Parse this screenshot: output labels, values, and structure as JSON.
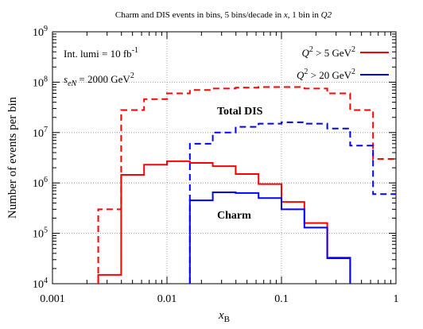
{
  "chart_data": {
    "type": "line",
    "title_parts": [
      "Charm and DIS events in bins, 5 bins/decade in ",
      "x",
      ", 1 bin in ",
      "Q2"
    ],
    "xlabel": {
      "main": "x",
      "sub": "B"
    },
    "ylabel": "Number of events per bin",
    "x_scale": "log",
    "y_scale": "log",
    "xlim": [
      0.001,
      1
    ],
    "ylim": [
      10000,
      1000000000
    ],
    "x_ticks": [
      {
        "value": 0.001,
        "label": "0.001"
      },
      {
        "value": 0.01,
        "label": "0.01"
      },
      {
        "value": 0.1,
        "label": "0.1"
      },
      {
        "value": 1,
        "label": "1"
      }
    ],
    "y_ticks": [
      {
        "value": 10000,
        "base": "10",
        "exp": "4"
      },
      {
        "value": 100000,
        "base": "10",
        "exp": "5"
      },
      {
        "value": 1000000,
        "base": "10",
        "exp": "6"
      },
      {
        "value": 10000000,
        "base": "10",
        "exp": "7"
      },
      {
        "value": 100000000,
        "base": "10",
        "exp": "8"
      },
      {
        "value": 1000000000,
        "base": "10",
        "exp": "9"
      }
    ],
    "grid": true,
    "bin_edges": [
      0.00251,
      0.00398,
      0.00631,
      0.01,
      0.01585,
      0.02512,
      0.03981,
      0.0631,
      0.1,
      0.1585,
      0.2512,
      0.3981,
      0.631,
      1.0
    ],
    "series": [
      {
        "name_parts": {
          "main": "Q",
          "sup1": "2",
          "mid": " > 5 GeV",
          "sup2": "2"
        },
        "group": "Q2>5",
        "color": "#ff0000",
        "dash": true,
        "label": "Total DIS",
        "values": [
          300000,
          28000000,
          46000000,
          60000000,
          70000000,
          75000000,
          78000000,
          80000000,
          80000000,
          75000000,
          60000000,
          28000000,
          3000000
        ]
      },
      {
        "group": "Q2>5",
        "color": "#ff0000",
        "dash": false,
        "label": "Charm",
        "values": [
          15000,
          1450000,
          2300000,
          2700000,
          2500000,
          2150000,
          1500000,
          950000,
          420000,
          160000,
          33000,
          null,
          null
        ]
      },
      {
        "name_parts": {
          "main": "Q",
          "sup1": "2",
          "mid": " > 20 GeV",
          "sup2": "2"
        },
        "group": "Q2>20",
        "color": "#0000ff",
        "dash": true,
        "label": "Total DIS",
        "values": [
          null,
          null,
          null,
          null,
          6000000,
          10000000,
          13000000,
          15000000,
          16000000,
          15000000,
          12000000,
          5500000,
          600000
        ]
      },
      {
        "group": "Q2>20",
        "color": "#0000ff",
        "dash": false,
        "label": "Charm",
        "values": [
          null,
          null,
          null,
          null,
          450000,
          650000,
          630000,
          500000,
          300000,
          130000,
          32000,
          null,
          null
        ]
      }
    ],
    "legend": {
      "placement": "top-right",
      "entries": [
        {
          "main": "Q",
          "sup1": "2",
          "mid": " > 5 GeV",
          "sup2": "2",
          "color": "#ff0000"
        },
        {
          "main": "Q",
          "sup1": "2",
          "mid": " > 20 GeV",
          "sup2": "2",
          "color": "#0000ff"
        }
      ]
    },
    "annotations": {
      "lumi": {
        "text": "Int. lumi = 10 fb",
        "sup": "-1"
      },
      "sqrts": {
        "s": "s",
        "sub": "eN",
        "rest": " = 2000 GeV",
        "sup": "2"
      },
      "total_dis": "Total DIS",
      "charm": "Charm"
    }
  }
}
